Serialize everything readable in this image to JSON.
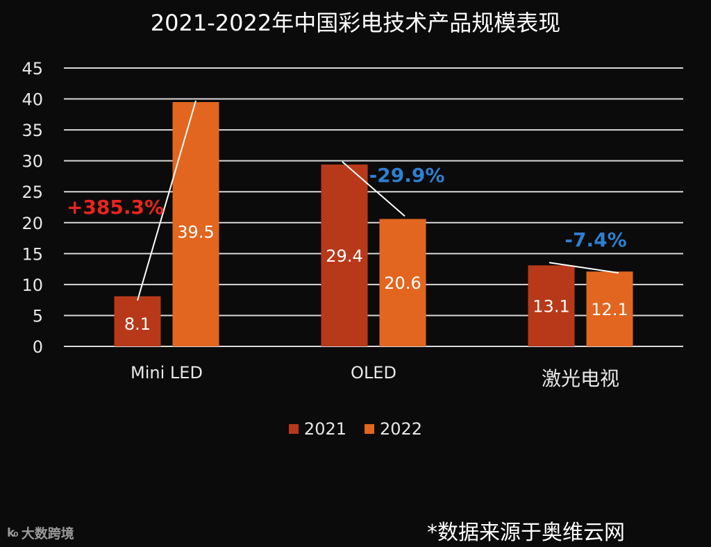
{
  "chart_data": {
    "type": "bar",
    "title": "2021-2022年中国彩电技术产品规模表现",
    "categories": [
      "Mini LED",
      "OLED",
      "激光电视"
    ],
    "series": [
      {
        "name": "2021",
        "values": [
          8.1,
          29.4,
          13.1
        ],
        "labels": [
          "8.1",
          "29.4",
          "13.1"
        ],
        "color": "#b8391a"
      },
      {
        "name": "2022",
        "values": [
          39.5,
          20.6,
          12.1
        ],
        "labels": [
          "39.5",
          "20.6",
          "12.1"
        ],
        "color": "#e2661f"
      }
    ],
    "growth_annotations": [
      {
        "category": "Mini LED",
        "text": "+385.3%",
        "color": "#e8251f"
      },
      {
        "category": "OLED",
        "text": "-29.9%",
        "color": "#2f7fd0"
      },
      {
        "category": "激光电视",
        "text": "-7.4%",
        "color": "#2f7fd0"
      }
    ],
    "yticks": [
      "0",
      "5",
      "10",
      "15",
      "20",
      "25",
      "30",
      "35",
      "40",
      "45"
    ],
    "ylim": [
      0,
      45
    ],
    "grid": true,
    "legend_position": "bottom",
    "xlabel": "",
    "ylabel": ""
  },
  "footer": {
    "source": "*数据来源于奥维云网",
    "watermark_text": "大数跨境",
    "watermark_logo": "k&#x2080;"
  }
}
